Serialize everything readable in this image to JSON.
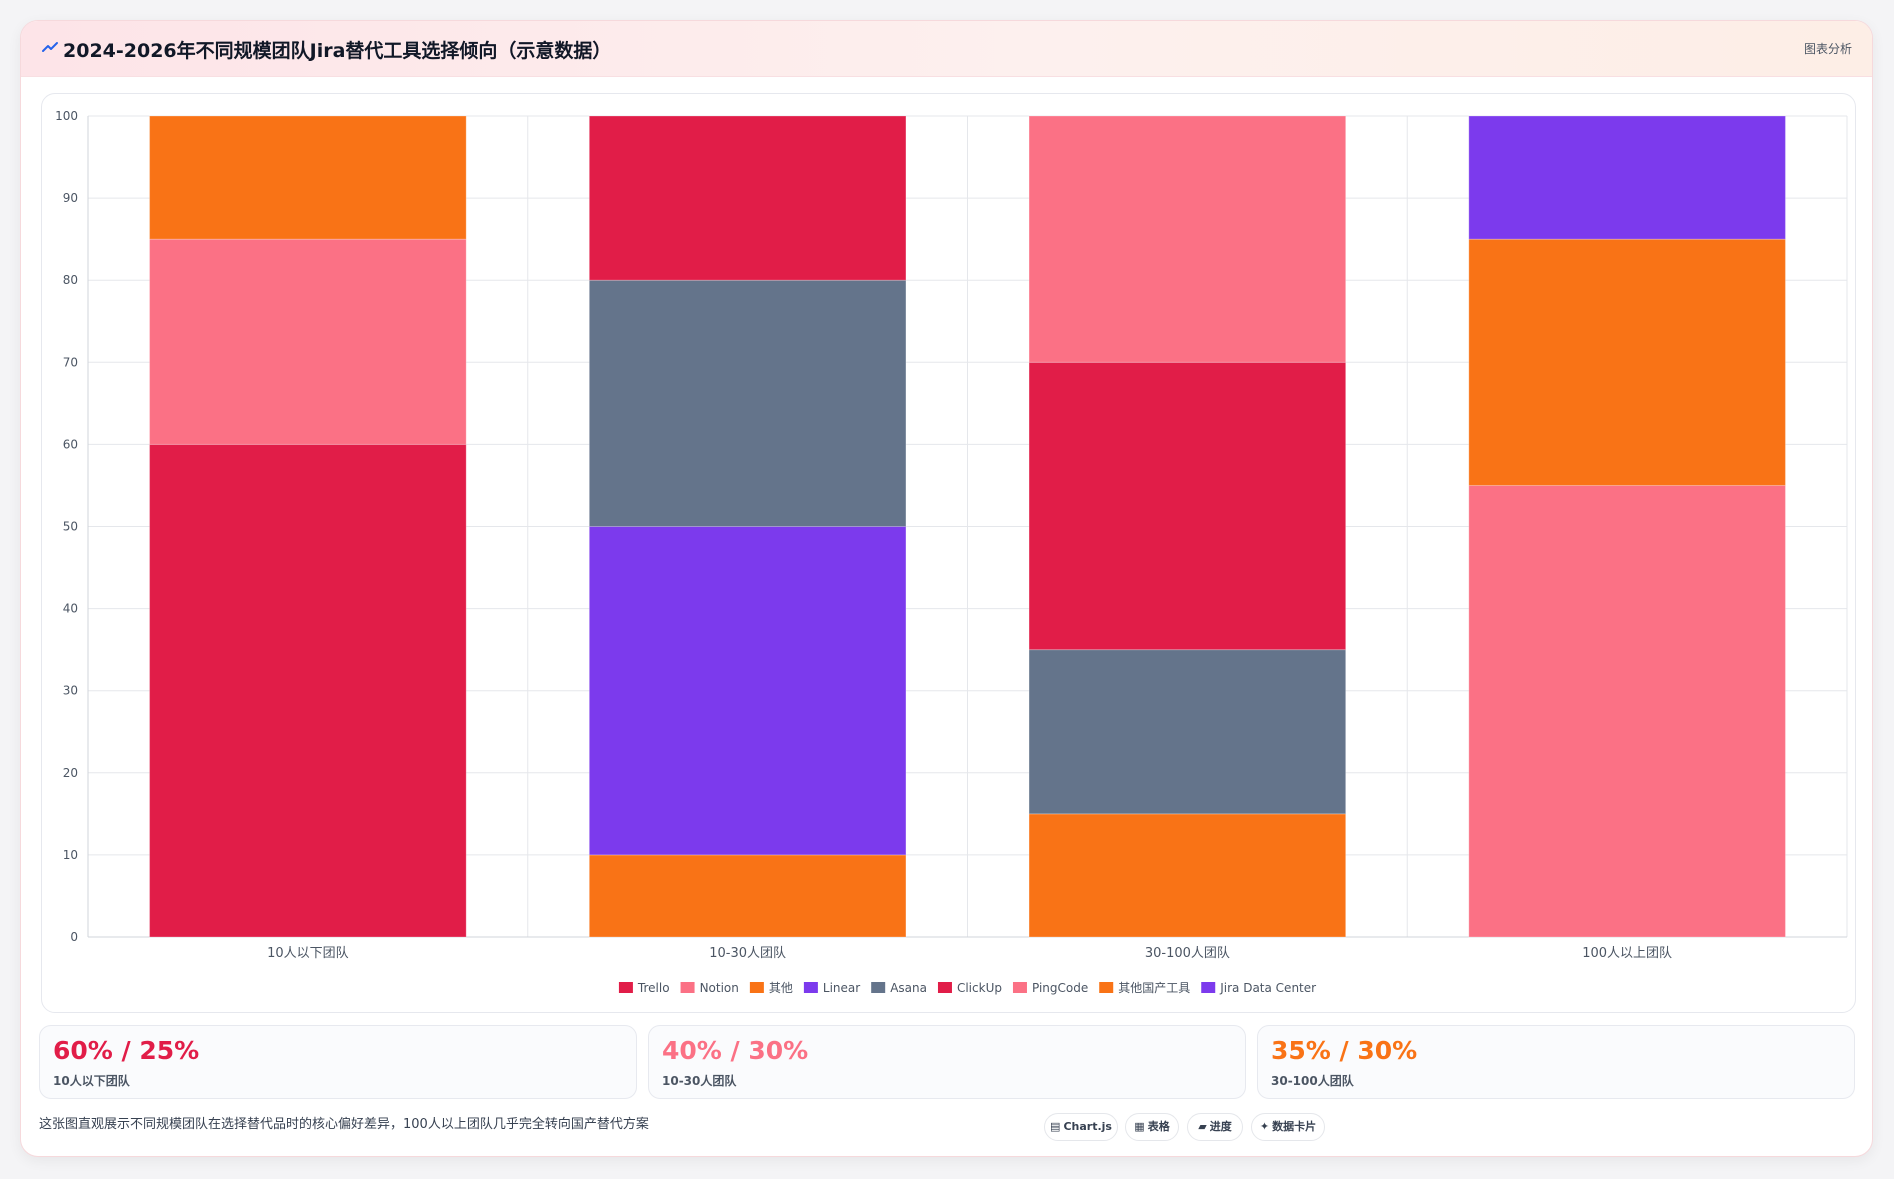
{
  "header": {
    "title": "2024-2026年不同规模团队Jira替代工具选择倾向（示意数据）",
    "right_label": "图表分析",
    "icon": "trend-icon"
  },
  "chart_data": {
    "type": "bar",
    "stacked": true,
    "categories": [
      "10人以下团队",
      "10-30人团队",
      "30-100人团队",
      "100人以上团队"
    ],
    "ylim": [
      0,
      100
    ],
    "yticks": [
      0,
      10,
      20,
      30,
      40,
      50,
      60,
      70,
      80,
      90,
      100
    ],
    "grid": true,
    "legend_position": "bottom",
    "series": [
      {
        "name": "Trello",
        "color": "#e11d48",
        "values": [
          60,
          0,
          0,
          0
        ]
      },
      {
        "name": "Notion",
        "color": "#fb7185",
        "values": [
          25,
          0,
          0,
          0
        ]
      },
      {
        "name": "其他",
        "color": "#f97316",
        "values": [
          15,
          10,
          0,
          0
        ]
      },
      {
        "name": "Linear",
        "color": "#7c3aed",
        "values": [
          0,
          40,
          0,
          0
        ]
      },
      {
        "name": "Asana",
        "color": "#64748b",
        "values": [
          0,
          30,
          20,
          0
        ]
      },
      {
        "name": "ClickUp",
        "color": "#e11d48",
        "values": [
          0,
          20,
          35,
          0
        ]
      },
      {
        "name": "PingCode",
        "color": "#fb7185",
        "values": [
          0,
          0,
          30,
          55
        ]
      },
      {
        "name": "其他国产工具",
        "color": "#f97316",
        "values": [
          0,
          0,
          15,
          30
        ]
      },
      {
        "name": "Jira Data Center",
        "color": "#7c3aed",
        "values": [
          0,
          0,
          0,
          15
        ]
      }
    ],
    "stack_order": [
      [
        "Trello",
        "Notion",
        "其他"
      ],
      [
        "其他",
        "Linear",
        "Asana",
        "ClickUp"
      ],
      [
        "其他国产工具",
        "Asana",
        "ClickUp",
        "PingCode"
      ],
      [
        "PingCode",
        "其他国产工具",
        "Jira Data Center"
      ]
    ]
  },
  "stats": [
    {
      "value": "60% / 25%",
      "label": "10人以下团队",
      "color": "#e11d48"
    },
    {
      "value": "40% / 30%",
      "label": "10-30人团队",
      "color": "#fb7185"
    },
    {
      "value": "35% / 30%",
      "label": "30-100人团队",
      "color": "#f97316"
    }
  ],
  "footnote": "这张图直观展示不同规模团队在选择替代品时的核心偏好差异，100人以上团队几乎完全转向国产替代方案",
  "chips": [
    {
      "icon": "chart-icon",
      "glyph": "▤",
      "label": "Chart.js"
    },
    {
      "icon": "table-icon",
      "glyph": "▦",
      "label": "表格"
    },
    {
      "icon": "progress-icon",
      "glyph": "▰",
      "label": "进度"
    },
    {
      "icon": "card-icon",
      "glyph": "✦",
      "label": "数据卡片"
    }
  ]
}
